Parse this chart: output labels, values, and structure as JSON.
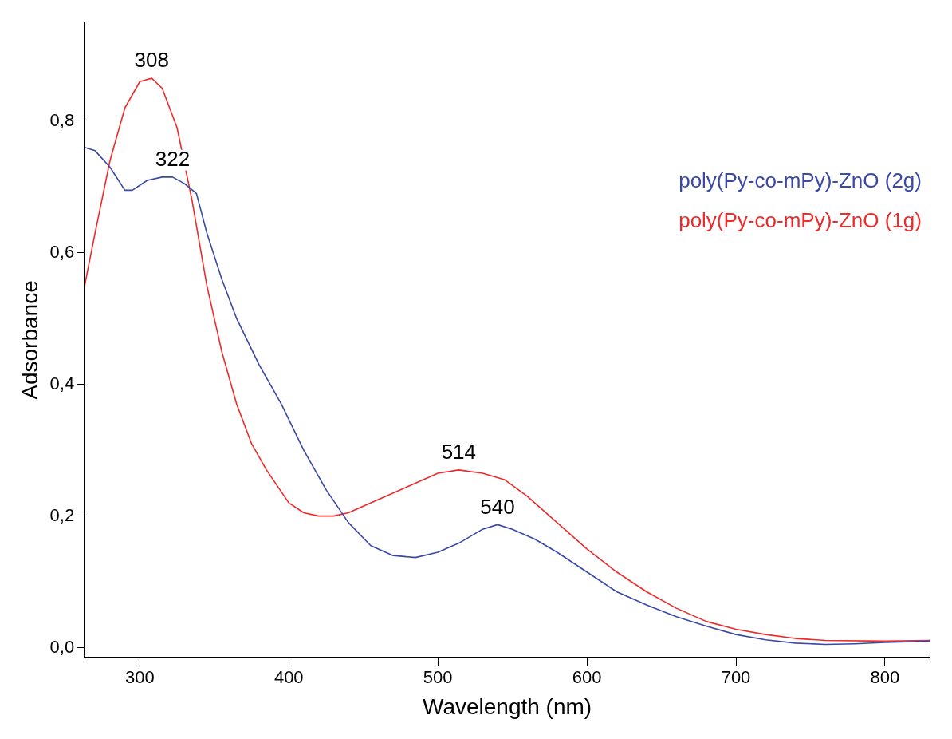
{
  "chart_data": {
    "type": "line",
    "xlabel": "Wavelength (nm)",
    "ylabel": "Adsorbance",
    "xlim": [
      263,
      830
    ],
    "xticks": [
      300,
      400,
      500,
      600,
      700,
      800
    ],
    "ylim": [
      -0.015,
      0.95
    ],
    "yticks": [
      {
        "value": 0,
        "label": "0,0"
      },
      {
        "value": 0.2,
        "label": "0,2"
      },
      {
        "value": 0.4,
        "label": "0,4"
      },
      {
        "value": 0.6,
        "label": "0,6"
      },
      {
        "value": 0.8,
        "label": "0,8"
      }
    ],
    "grid": false,
    "legend": "top right",
    "marker": "none",
    "line_style": "solid",
    "series": [
      {
        "name": "poly(Py-co-mPy)-ZnO (2g)",
        "color": "#3a48a8",
        "x": [
          263,
          270,
          280,
          290,
          295,
          305,
          315,
          322,
          330,
          338,
          345,
          355,
          365,
          380,
          395,
          410,
          425,
          440,
          455,
          470,
          485,
          500,
          515,
          530,
          540,
          550,
          565,
          580,
          600,
          620,
          640,
          660,
          680,
          700,
          720,
          740,
          760,
          780,
          800,
          830
        ],
        "values": [
          0.76,
          0.755,
          0.73,
          0.695,
          0.695,
          0.71,
          0.715,
          0.715,
          0.705,
          0.69,
          0.63,
          0.56,
          0.5,
          0.43,
          0.37,
          0.3,
          0.24,
          0.19,
          0.155,
          0.14,
          0.137,
          0.145,
          0.16,
          0.18,
          0.187,
          0.18,
          0.165,
          0.145,
          0.115,
          0.085,
          0.065,
          0.047,
          0.033,
          0.02,
          0.012,
          0.007,
          0.005,
          0.006,
          0.008,
          0.01
        ]
      },
      {
        "name": "poly(Py-co-mPy)-ZnO (1g)",
        "color": "#ee2a2a",
        "x": [
          263,
          270,
          280,
          290,
          300,
          308,
          315,
          325,
          335,
          345,
          355,
          365,
          375,
          385,
          400,
          410,
          420,
          430,
          440,
          460,
          480,
          500,
          514,
          530,
          545,
          560,
          580,
          600,
          620,
          640,
          660,
          680,
          700,
          720,
          740,
          760,
          800,
          830
        ],
        "values": [
          0.55,
          0.63,
          0.74,
          0.82,
          0.86,
          0.865,
          0.85,
          0.79,
          0.68,
          0.55,
          0.45,
          0.37,
          0.31,
          0.27,
          0.22,
          0.205,
          0.2,
          0.2,
          0.205,
          0.225,
          0.245,
          0.265,
          0.27,
          0.265,
          0.255,
          0.23,
          0.19,
          0.15,
          0.115,
          0.085,
          0.06,
          0.04,
          0.028,
          0.02,
          0.014,
          0.011,
          0.01,
          0.011
        ]
      }
    ],
    "annotations": [
      {
        "text": "308",
        "x": 308,
        "y": 0.865
      },
      {
        "text": "322",
        "x": 322,
        "y": 0.715
      },
      {
        "text": "514",
        "x": 514,
        "y": 0.27
      },
      {
        "text": "540",
        "x": 540,
        "y": 0.187
      }
    ]
  }
}
